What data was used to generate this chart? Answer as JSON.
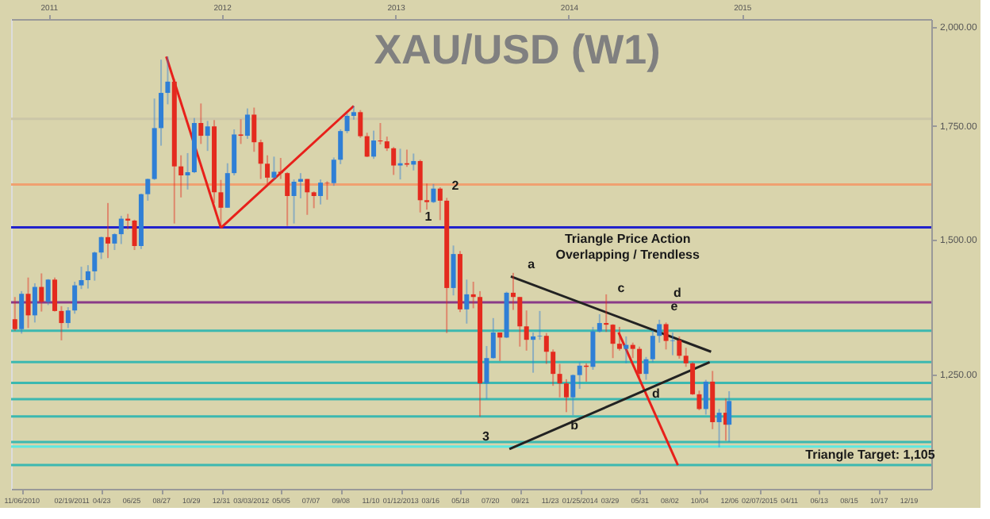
{
  "chart_data": {
    "type": "candlestick",
    "title": "XAU/USD (W1)",
    "x": [
      "2010-10-22",
      "2010-11-05",
      "2010-11-19",
      "2010-12-03",
      "2010-12-17",
      "2010-12-31",
      "2011-01-14",
      "2011-01-28",
      "2011-02-11",
      "2011-02-25",
      "2011-03-11",
      "2011-03-25",
      "2011-04-08",
      "2011-04-22",
      "2011-05-06",
      "2011-05-20",
      "2011-06-03",
      "2011-06-17",
      "2011-07-01",
      "2011-07-15",
      "2011-07-29",
      "2011-08-12",
      "2011-08-26",
      "2011-09-09",
      "2011-09-23",
      "2011-10-07",
      "2011-10-21",
      "2011-11-04",
      "2011-11-18",
      "2011-12-02",
      "2011-12-16",
      "2011-12-30",
      "2012-01-13",
      "2012-01-27",
      "2012-02-10",
      "2012-02-24",
      "2012-03-09",
      "2012-03-23",
      "2012-04-06",
      "2012-04-20",
      "2012-05-04",
      "2012-05-18",
      "2012-06-01",
      "2012-06-15",
      "2012-06-29",
      "2012-07-13",
      "2012-07-27",
      "2012-08-10",
      "2012-08-24",
      "2012-09-07",
      "2012-09-21",
      "2012-10-05",
      "2012-10-19",
      "2012-11-02",
      "2012-11-16",
      "2012-11-30",
      "2012-12-14",
      "2012-12-28",
      "2013-01-11",
      "2013-01-25",
      "2013-02-08",
      "2013-02-22",
      "2013-03-08",
      "2013-03-22",
      "2013-04-05",
      "2013-04-19",
      "2013-05-03",
      "2013-05-17",
      "2013-05-31",
      "2013-06-14",
      "2013-06-28",
      "2013-07-12",
      "2013-07-26",
      "2013-08-09",
      "2013-08-23",
      "2013-09-06",
      "2013-09-20",
      "2013-10-04",
      "2013-10-18",
      "2013-11-01",
      "2013-11-15",
      "2013-11-29",
      "2013-12-13",
      "2013-12-27",
      "2014-01-10",
      "2014-01-24",
      "2014-02-07",
      "2014-02-21",
      "2014-03-07",
      "2014-03-21",
      "2014-04-04",
      "2014-04-18",
      "2014-05-02",
      "2014-05-16",
      "2014-05-30",
      "2014-06-13",
      "2014-06-27",
      "2014-07-11",
      "2014-07-25",
      "2014-08-08",
      "2014-08-22",
      "2014-09-05",
      "2014-09-19",
      "2014-10-03",
      "2014-10-17",
      "2014-10-31",
      "2014-11-14",
      "2014-11-28",
      "2014-12-05"
    ],
    "ohlc": [
      [
        1346,
        1387,
        1325,
        1328
      ],
      [
        1328,
        1398,
        1320,
        1393
      ],
      [
        1393,
        1424,
        1330,
        1353
      ],
      [
        1353,
        1413,
        1340,
        1406
      ],
      [
        1406,
        1432,
        1360,
        1378
      ],
      [
        1378,
        1421,
        1372,
        1420
      ],
      [
        1420,
        1424,
        1360,
        1361
      ],
      [
        1361,
        1370,
        1308,
        1339
      ],
      [
        1339,
        1368,
        1330,
        1362
      ],
      [
        1362,
        1416,
        1356,
        1409
      ],
      [
        1409,
        1445,
        1402,
        1419
      ],
      [
        1419,
        1448,
        1403,
        1436
      ],
      [
        1436,
        1475,
        1418,
        1473
      ],
      [
        1473,
        1505,
        1460,
        1504
      ],
      [
        1504,
        1575,
        1462,
        1491
      ],
      [
        1491,
        1512,
        1478,
        1510
      ],
      [
        1510,
        1548,
        1490,
        1542
      ],
      [
        1542,
        1552,
        1520,
        1538
      ],
      [
        1538,
        1540,
        1478,
        1486
      ],
      [
        1486,
        1595,
        1480,
        1594
      ],
      [
        1594,
        1628,
        1580,
        1627
      ],
      [
        1627,
        1814,
        1625,
        1743
      ],
      [
        1743,
        1912,
        1702,
        1828
      ],
      [
        1828,
        1920,
        1800,
        1856
      ],
      [
        1856,
        1863,
        1532,
        1655
      ],
      [
        1655,
        1680,
        1587,
        1635
      ],
      [
        1635,
        1685,
        1604,
        1642
      ],
      [
        1642,
        1767,
        1640,
        1755
      ],
      [
        1755,
        1802,
        1706,
        1725
      ],
      [
        1725,
        1760,
        1690,
        1747
      ],
      [
        1747,
        1762,
        1575,
        1598
      ],
      [
        1598,
        1625,
        1523,
        1565
      ],
      [
        1565,
        1662,
        1565,
        1640
      ],
      [
        1640,
        1740,
        1635,
        1728
      ],
      [
        1728,
        1764,
        1706,
        1725
      ],
      [
        1725,
        1790,
        1718,
        1775
      ],
      [
        1775,
        1792,
        1688,
        1710
      ],
      [
        1710,
        1716,
        1627,
        1661
      ],
      [
        1661,
        1680,
        1613,
        1630
      ],
      [
        1630,
        1677,
        1625,
        1643
      ],
      [
        1643,
        1674,
        1627,
        1640
      ],
      [
        1640,
        1642,
        1527,
        1590
      ],
      [
        1590,
        1626,
        1532,
        1621
      ],
      [
        1621,
        1640,
        1585,
        1627
      ],
      [
        1627,
        1627,
        1550,
        1598
      ],
      [
        1598,
        1600,
        1564,
        1590
      ],
      [
        1590,
        1626,
        1572,
        1619
      ],
      [
        1619,
        1622,
        1582,
        1618
      ],
      [
        1618,
        1675,
        1612,
        1670
      ],
      [
        1670,
        1740,
        1660,
        1736
      ],
      [
        1736,
        1778,
        1731,
        1772
      ],
      [
        1772,
        1796,
        1763,
        1781
      ],
      [
        1781,
        1786,
        1720,
        1724
      ],
      [
        1724,
        1732,
        1676,
        1677
      ],
      [
        1677,
        1737,
        1672,
        1714
      ],
      [
        1714,
        1755,
        1705,
        1712
      ],
      [
        1712,
        1723,
        1690,
        1696
      ],
      [
        1696,
        1699,
        1636,
        1657
      ],
      [
        1657,
        1695,
        1626,
        1662
      ],
      [
        1662,
        1693,
        1654,
        1659
      ],
      [
        1659,
        1684,
        1646,
        1667
      ],
      [
        1667,
        1670,
        1555,
        1581
      ],
      [
        1581,
        1617,
        1561,
        1577
      ],
      [
        1577,
        1616,
        1575,
        1606
      ],
      [
        1606,
        1609,
        1539,
        1580
      ],
      [
        1580,
        1586,
        1321,
        1404
      ],
      [
        1404,
        1487,
        1390,
        1470
      ],
      [
        1470,
        1476,
        1359,
        1364
      ],
      [
        1364,
        1420,
        1338,
        1392
      ],
      [
        1392,
        1416,
        1366,
        1387
      ],
      [
        1387,
        1398,
        1180,
        1234
      ],
      [
        1234,
        1298,
        1208,
        1277
      ],
      [
        1277,
        1348,
        1276,
        1322
      ],
      [
        1322,
        1322,
        1272,
        1313
      ],
      [
        1313,
        1397,
        1312,
        1395
      ],
      [
        1395,
        1433,
        1363,
        1387
      ],
      [
        1387,
        1387,
        1297,
        1333
      ],
      [
        1333,
        1362,
        1290,
        1309
      ],
      [
        1309,
        1322,
        1252,
        1315
      ],
      [
        1315,
        1361,
        1309,
        1316
      ],
      [
        1316,
        1321,
        1267,
        1288
      ],
      [
        1288,
        1292,
        1230,
        1250
      ],
      [
        1250,
        1267,
        1211,
        1234
      ],
      [
        1234,
        1241,
        1187,
        1211
      ],
      [
        1211,
        1249,
        1182,
        1248
      ],
      [
        1248,
        1270,
        1225,
        1264
      ],
      [
        1264,
        1268,
        1237,
        1262
      ],
      [
        1262,
        1332,
        1257,
        1324
      ],
      [
        1324,
        1355,
        1322,
        1339
      ],
      [
        1339,
        1392,
        1323,
        1336
      ],
      [
        1336,
        1337,
        1277,
        1302
      ],
      [
        1302,
        1332,
        1290,
        1293
      ],
      [
        1293,
        1315,
        1268,
        1300
      ],
      [
        1300,
        1304,
        1277,
        1293
      ],
      [
        1293,
        1297,
        1240,
        1250
      ],
      [
        1250,
        1279,
        1240,
        1275
      ],
      [
        1275,
        1326,
        1270,
        1316
      ],
      [
        1316,
        1345,
        1304,
        1337
      ],
      [
        1337,
        1340,
        1292,
        1307
      ],
      [
        1307,
        1322,
        1282,
        1308
      ],
      [
        1308,
        1315,
        1276,
        1281
      ],
      [
        1281,
        1295,
        1262,
        1268
      ],
      [
        1268,
        1270,
        1215,
        1216
      ],
      [
        1216,
        1222,
        1190,
        1192
      ],
      [
        1192,
        1240,
        1183,
        1237
      ],
      [
        1237,
        1255,
        1160,
        1171
      ],
      [
        1171,
        1192,
        1132,
        1186
      ],
      [
        1186,
        1209,
        1142,
        1167
      ],
      [
        1167,
        1221,
        1140,
        1205
      ]
    ],
    "colors": [
      "#e42a1e",
      "#2f7fd6",
      "#e42a1e",
      "#2f7fd6",
      "#e42a1e",
      "#2f7fd6",
      "#e42a1e",
      "#e42a1e",
      "#2f7fd6",
      "#2f7fd6",
      "#2f7fd6",
      "#2f7fd6",
      "#2f7fd6",
      "#2f7fd6",
      "#e42a1e",
      "#2f7fd6",
      "#2f7fd6",
      "#e42a1e",
      "#e42a1e",
      "#2f7fd6",
      "#2f7fd6",
      "#2f7fd6",
      "#2f7fd6",
      "#2f7fd6",
      "#e42a1e",
      "#e42a1e",
      "#2f7fd6",
      "#2f7fd6",
      "#e42a1e",
      "#2f7fd6",
      "#e42a1e",
      "#e42a1e",
      "#2f7fd6",
      "#2f7fd6",
      "#e42a1e",
      "#2f7fd6",
      "#e42a1e",
      "#e42a1e",
      "#e42a1e",
      "#2f7fd6",
      "#e42a1e",
      "#e42a1e",
      "#2f7fd6",
      "#2f7fd6",
      "#e42a1e",
      "#e42a1e",
      "#2f7fd6",
      "#e42a1e",
      "#2f7fd6",
      "#2f7fd6",
      "#2f7fd6",
      "#2f7fd6",
      "#e42a1e",
      "#e42a1e",
      "#2f7fd6",
      "#e42a1e",
      "#e42a1e",
      "#e42a1e",
      "#2f7fd6",
      "#e42a1e",
      "#2f7fd6",
      "#e42a1e",
      "#e42a1e",
      "#2f7fd6",
      "#e42a1e",
      "#e42a1e",
      "#2f7fd6",
      "#e42a1e",
      "#2f7fd6",
      "#e42a1e",
      "#e42a1e",
      "#2f7fd6",
      "#2f7fd6",
      "#e42a1e",
      "#2f7fd6",
      "#e42a1e",
      "#e42a1e",
      "#e42a1e",
      "#2f7fd6",
      "#2f7fd6",
      "#e42a1e",
      "#e42a1e",
      "#e42a1e",
      "#e42a1e",
      "#2f7fd6",
      "#2f7fd6",
      "#e42a1e",
      "#2f7fd6",
      "#2f7fd6",
      "#e42a1e",
      "#e42a1e",
      "#e42a1e",
      "#2f7fd6",
      "#e42a1e",
      "#e42a1e",
      "#2f7fd6",
      "#2f7fd6",
      "#2f7fd6",
      "#e42a1e",
      "#2f7fd6",
      "#e42a1e",
      "#e42a1e",
      "#e42a1e",
      "#e42a1e",
      "#2f7fd6",
      "#e42a1e",
      "#2f7fd6",
      "#e42a1e",
      "#2f7fd6"
    ],
    "series": [
      {
        "type": "line",
        "color": "#e8201a",
        "x": [
          "2011-09-06",
          "2011-12-30"
        ],
        "values": [
          1920,
          1523
        ]
      },
      {
        "type": "line",
        "color": "#e8201a",
        "x": [
          "2011-12-30",
          "2012-10-05"
        ],
        "values": [
          1523,
          1796
        ]
      },
      {
        "type": "line",
        "color": "#e8201a",
        "x": [
          "2014-04-16",
          "2014-08-19"
        ],
        "values": [
          1322,
          1105
        ]
      },
      {
        "type": "line",
        "color": "#222222",
        "x": [
          "2013-09-01",
          "2014-10-28"
        ],
        "values": [
          1426,
          1288
        ]
      },
      {
        "type": "line",
        "color": "#222222",
        "x": [
          "2013-08-29",
          "2014-10-25"
        ],
        "values": [
          1129,
          1270
        ]
      }
    ],
    "xlim": [
      "2010-10-14",
      "2016-02-04"
    ],
    "xticks": [
      {
        "value": "2010-11-06",
        "label": "11/06/2010"
      },
      {
        "value": "2011-02-19",
        "label": "02/19/2011"
      },
      {
        "value": "2011-04-23",
        "label": "04/23"
      },
      {
        "value": "2011-06-25",
        "label": "06/25"
      },
      {
        "value": "2011-08-27",
        "label": "08/27"
      },
      {
        "value": "2011-10-29",
        "label": "10/29"
      },
      {
        "value": "2011-12-31",
        "label": "12/31"
      },
      {
        "value": "2012-03-03",
        "label": "03/03/2012"
      },
      {
        "value": "2012-05-05",
        "label": "05/05"
      },
      {
        "value": "2012-07-07",
        "label": "07/07"
      },
      {
        "value": "2012-09-08",
        "label": "09/08"
      },
      {
        "value": "2012-11-10",
        "label": "11/10"
      },
      {
        "value": "2013-01-12",
        "label": "01/12/2013"
      },
      {
        "value": "2013-03-16",
        "label": "03/16"
      },
      {
        "value": "2013-05-18",
        "label": "05/18"
      },
      {
        "value": "2013-07-20",
        "label": "07/20"
      },
      {
        "value": "2013-09-21",
        "label": "09/21"
      },
      {
        "value": "2013-11-23",
        "label": "11/23"
      },
      {
        "value": "2014-01-25",
        "label": "01/25/2014"
      },
      {
        "value": "2014-03-29",
        "label": "03/29"
      },
      {
        "value": "2014-05-31",
        "label": "05/31"
      },
      {
        "value": "2014-08-02",
        "label": "08/02"
      },
      {
        "value": "2014-10-04",
        "label": "10/04"
      },
      {
        "value": "2014-12-06",
        "label": "12/06"
      },
      {
        "value": "2015-02-07",
        "label": "02/07/2015"
      },
      {
        "value": "2015-04-11",
        "label": "04/11"
      },
      {
        "value": "2015-06-13",
        "label": "06/13"
      },
      {
        "value": "2015-08-15",
        "label": "08/15"
      },
      {
        "value": "2015-10-17",
        "label": "10/17"
      },
      {
        "value": "2015-12-19",
        "label": "12/19"
      }
    ],
    "x2lim": [
      "2010-10-14",
      "2016-02-04"
    ],
    "x2ticks": [
      {
        "value": "2011-01-01",
        "label": "2011"
      },
      {
        "value": "2012-01-01",
        "label": "2012"
      },
      {
        "value": "2013-01-01",
        "label": "2013"
      },
      {
        "value": "2014-01-01",
        "label": "2014"
      },
      {
        "value": "2015-01-01",
        "label": "2015"
      }
    ],
    "ylim": [
      1070,
      2020
    ],
    "yticks": [
      {
        "value": 1250,
        "label": "1,250.00"
      },
      {
        "value": 1500,
        "label": "1,500.00"
      },
      {
        "value": 1750,
        "label": "1,750.00"
      },
      {
        "value": 2000,
        "label": "2,000.00"
      }
    ],
    "log": true,
    "ref_lines": [
      {
        "axis": "y",
        "value": 1765,
        "color": "#cbc6a8"
      },
      {
        "axis": "y",
        "value": 1615,
        "color": "#f0a070"
      },
      {
        "axis": "y",
        "value": 1524,
        "color": "#2222cc"
      },
      {
        "axis": "y",
        "value": 1377,
        "color": "#8a3a88"
      },
      {
        "axis": "y",
        "value": 1325,
        "color": "#3cb8b0"
      },
      {
        "axis": "y",
        "value": 1270,
        "color": "#3cb8b0"
      },
      {
        "axis": "y",
        "value": 1235,
        "color": "#3cb8b0"
      },
      {
        "axis": "y",
        "value": 1208,
        "color": "#3cb8b0"
      },
      {
        "axis": "y",
        "value": 1180,
        "color": "#3cb8b0"
      },
      {
        "axis": "y",
        "value": 1140,
        "color": "#3cb8b0"
      },
      {
        "axis": "y",
        "value": 1133,
        "color": "#5ee8e0"
      },
      {
        "axis": "y",
        "value": 1105,
        "color": "#3cb8b0"
      }
    ],
    "annotations": [
      {
        "text": "1",
        "x": "2013-02-15",
        "y": 1524
      },
      {
        "text": "2",
        "x": "2013-04-13",
        "y": 1590
      },
      {
        "text": "3",
        "x": "2013-06-16",
        "y": 1133
      },
      {
        "text": "a",
        "x": "2013-09-20",
        "y": 1430
      },
      {
        "text": "b",
        "x": "2013-12-19",
        "y": 1150
      },
      {
        "text": "c",
        "x": "2014-03-28",
        "y": 1385
      },
      {
        "text": "d",
        "x": "2014-07-24",
        "y": 1376
      },
      {
        "text": "e",
        "x": "2014-07-18",
        "y": 1350
      },
      {
        "text": "d",
        "x": "2014-06-09",
        "y": 1200
      },
      "Triangle Price Action",
      "Overlapping / Trendless",
      {
        "text": "Triangle Target: 1,105",
        "x": "2015-04-28",
        "y": 1105
      }
    ],
    "grid": false
  }
}
